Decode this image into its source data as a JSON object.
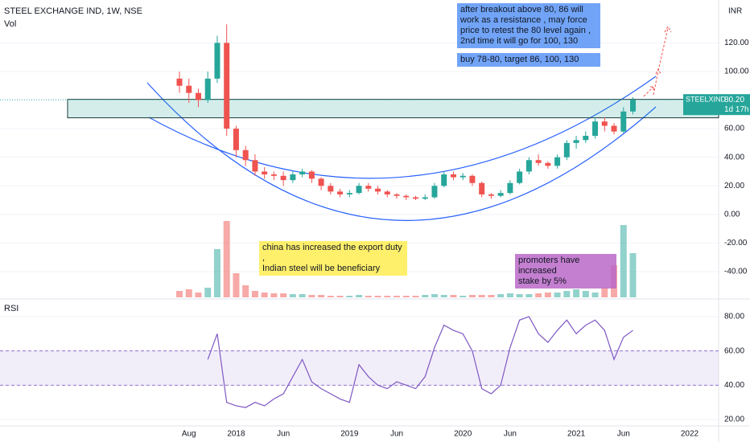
{
  "chart_data": {
    "type": "candlestick",
    "title": "STEEL EXCHANGE IND, 1W, NSE",
    "volume_label": "Vol",
    "rsi_label": "RSI",
    "currency": "INR",
    "last_label": "STEELXIND",
    "last_price": {
      "value": 80.2,
      "label": "80.20"
    },
    "countdown": "1d 17h",
    "zone": [
      67.6,
      80.5
    ],
    "categories": [
      null,
      "Aug",
      null,
      null,
      null,
      null,
      "2018",
      null,
      null,
      null,
      null,
      "Jun",
      null,
      null,
      null,
      null,
      null,
      null,
      "2019",
      null,
      null,
      null,
      null,
      "Jun",
      null,
      null,
      null,
      null,
      null,
      null,
      "2020",
      null,
      null,
      null,
      null,
      "Jun",
      null,
      null,
      null,
      null,
      null,
      null,
      "2021",
      null,
      null,
      null,
      null,
      "Jun",
      null,
      null,
      null,
      null,
      null,
      null,
      "2022",
      null,
      null,
      null
    ],
    "open": [
      95,
      90,
      85,
      80,
      95,
      120,
      60,
      45,
      38,
      30,
      28,
      27,
      24,
      28,
      30,
      25,
      20,
      16,
      14,
      15,
      20,
      18,
      16,
      14,
      13,
      12,
      11,
      12,
      20,
      28,
      26,
      27,
      22,
      14,
      13,
      15,
      22,
      30,
      38,
      36,
      34,
      40,
      50,
      52,
      55,
      65,
      62,
      58,
      72,
      null,
      null,
      null,
      null,
      null,
      null,
      null,
      null,
      null
    ],
    "high": [
      100,
      95,
      88,
      100,
      125,
      133,
      62,
      48,
      42,
      33,
      30,
      30,
      30,
      32,
      31,
      26,
      22,
      18,
      17,
      22,
      22,
      20,
      17,
      15,
      14,
      13,
      14,
      22,
      30,
      30,
      29,
      28,
      23,
      15,
      17,
      24,
      32,
      40,
      42,
      37,
      42,
      52,
      55,
      58,
      68,
      68,
      64,
      75,
      82,
      null,
      null,
      null,
      null,
      null,
      null,
      null,
      null,
      null
    ],
    "low": [
      85,
      78,
      75,
      78,
      92,
      55,
      40,
      34,
      27,
      25,
      24,
      20,
      22,
      26,
      22,
      17,
      14,
      12,
      12,
      14,
      16,
      14,
      12,
      11,
      10,
      10,
      10,
      11,
      19,
      24,
      24,
      20,
      12,
      11,
      12,
      14,
      21,
      28,
      34,
      32,
      32,
      38,
      46,
      50,
      53,
      58,
      56,
      57,
      70,
      null,
      null,
      null,
      null,
      null,
      null,
      null,
      null,
      null
    ],
    "close": [
      90,
      85,
      80,
      95,
      120,
      60,
      45,
      38,
      30,
      28,
      27,
      24,
      28,
      30,
      25,
      20,
      16,
      14,
      15,
      20,
      18,
      16,
      14,
      13,
      12,
      11,
      12,
      20,
      28,
      26,
      27,
      22,
      14,
      13,
      15,
      22,
      30,
      38,
      36,
      34,
      40,
      50,
      52,
      55,
      65,
      62,
      58,
      72,
      80.2,
      null,
      null,
      null,
      null,
      null,
      null,
      null,
      null,
      null
    ],
    "volume": [
      8,
      10,
      6,
      12,
      60,
      95,
      30,
      15,
      8,
      6,
      5,
      5,
      4,
      4,
      3,
      3,
      2,
      2,
      2,
      3,
      2,
      2,
      2,
      2,
      2,
      2,
      3,
      4,
      3,
      3,
      2,
      3,
      3,
      3,
      4,
      5,
      4,
      4,
      5,
      6,
      6,
      8,
      10,
      8,
      6,
      12,
      40,
      90,
      55,
      null,
      null,
      null,
      null,
      null,
      null,
      null,
      null,
      null
    ],
    "rsi": [
      null,
      null,
      null,
      55,
      70,
      30,
      28,
      27,
      30,
      28,
      32,
      35,
      45,
      55,
      42,
      38,
      35,
      32,
      30,
      52,
      45,
      40,
      38,
      42,
      40,
      38,
      45,
      62,
      75,
      72,
      70,
      60,
      38,
      35,
      40,
      62,
      78,
      80,
      70,
      65,
      72,
      78,
      70,
      75,
      78,
      72,
      55,
      68,
      72,
      null,
      null,
      null,
      null,
      null,
      null,
      null,
      null,
      null
    ],
    "ylim": [
      -58,
      150
    ],
    "yticks": [
      {
        "value": -40,
        "label": "-40.00"
      },
      {
        "value": -20,
        "label": "-20.00"
      },
      {
        "value": 0,
        "label": "0.00"
      },
      {
        "value": 20,
        "label": "20.00"
      },
      {
        "value": 40,
        "label": "40.00"
      },
      {
        "value": 60,
        "label": "60.00"
      },
      {
        "value": 100,
        "label": "100.00"
      },
      {
        "value": 120,
        "label": "120.00"
      }
    ],
    "rsi_ylim": [
      16.25,
      88.9
    ],
    "rsi_yticks": [
      {
        "value": 20,
        "label": "20.00"
      },
      {
        "value": 40,
        "label": "40.00"
      },
      {
        "value": 60,
        "label": "60.00"
      },
      {
        "value": 80,
        "label": "80.00"
      }
    ],
    "rsi_band": [
      40,
      60
    ],
    "up_color": "#26a69a",
    "down_color": "#ef5350",
    "rsi_color": "#7e57c2",
    "annotations": [
      {
        "lines": [
          "after breakout above 80, 86 will",
          "work as a resistance , may force",
          "price to retest the 80 level again ,",
          "2nd time it will go for 100, 130"
        ]
      },
      {
        "lines": [
          "buy 78-80, target 86, 100, 130"
        ]
      },
      {
        "lines": [
          "china has increased the export duty ,",
          "Indian steel will be beneficiary"
        ]
      },
      {
        "lines": [
          "promoters have increased",
          "stake by 5%"
        ]
      }
    ]
  }
}
